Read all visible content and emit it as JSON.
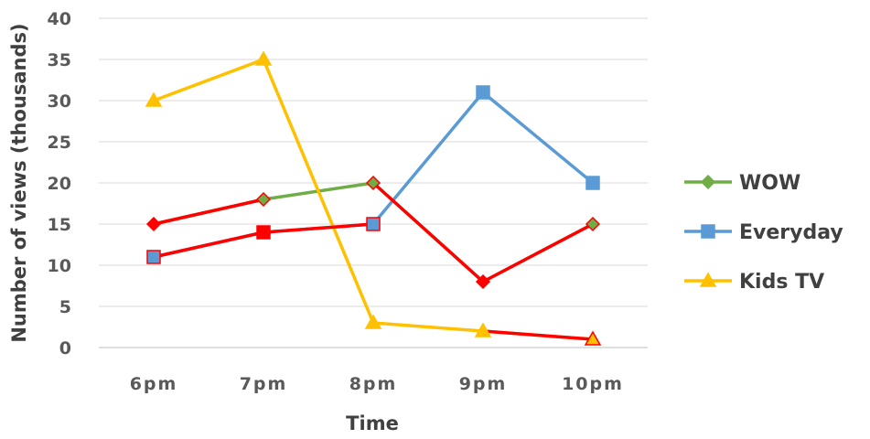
{
  "chart_data": {
    "type": "line",
    "categories": [
      "6pm",
      "7pm",
      "8pm",
      "9pm",
      "10pm"
    ],
    "xlabel": "Time",
    "ylabel": "Number of views (thousands)",
    "ylim": [
      0,
      40
    ],
    "yticks": [
      0,
      5,
      10,
      15,
      20,
      25,
      30,
      35,
      40
    ],
    "grid": true,
    "legend_position": "right",
    "series": [
      {
        "name": "WOW",
        "values": [
          15,
          18,
          20,
          8,
          15
        ],
        "color": "#70AD47",
        "marker": "diamond"
      },
      {
        "name": "Everyday",
        "values": [
          11,
          14,
          15,
          31,
          20
        ],
        "color": "#5B9BD5",
        "marker": "square"
      },
      {
        "name": "Kids TV",
        "values": [
          30,
          35,
          3,
          2,
          1
        ],
        "color": "#FFC000",
        "marker": "triangle"
      }
    ],
    "highlight": {
      "color": "#FF0000",
      "description_segments": [
        {
          "series": 0,
          "from": 0,
          "to": 1
        },
        {
          "series": 0,
          "from": 2,
          "to": 3
        },
        {
          "series": 0,
          "from": 3,
          "to": 4
        },
        {
          "series": 1,
          "from": 0,
          "to": 1
        },
        {
          "series": 1,
          "from": 1,
          "to": 2
        },
        {
          "series": 2,
          "from": 3,
          "to": 4
        }
      ],
      "points": [
        {
          "series": 0,
          "index": 0,
          "style": "fill"
        },
        {
          "series": 0,
          "index": 3,
          "style": "fill"
        },
        {
          "series": 1,
          "index": 1,
          "style": "fill"
        },
        {
          "series": 0,
          "index": 1,
          "style": "outline"
        },
        {
          "series": 0,
          "index": 2,
          "style": "outline"
        },
        {
          "series": 0,
          "index": 4,
          "style": "outline"
        },
        {
          "series": 1,
          "index": 0,
          "style": "outline"
        },
        {
          "series": 1,
          "index": 2,
          "style": "outline"
        },
        {
          "series": 2,
          "index": 4,
          "style": "outline"
        }
      ]
    }
  }
}
